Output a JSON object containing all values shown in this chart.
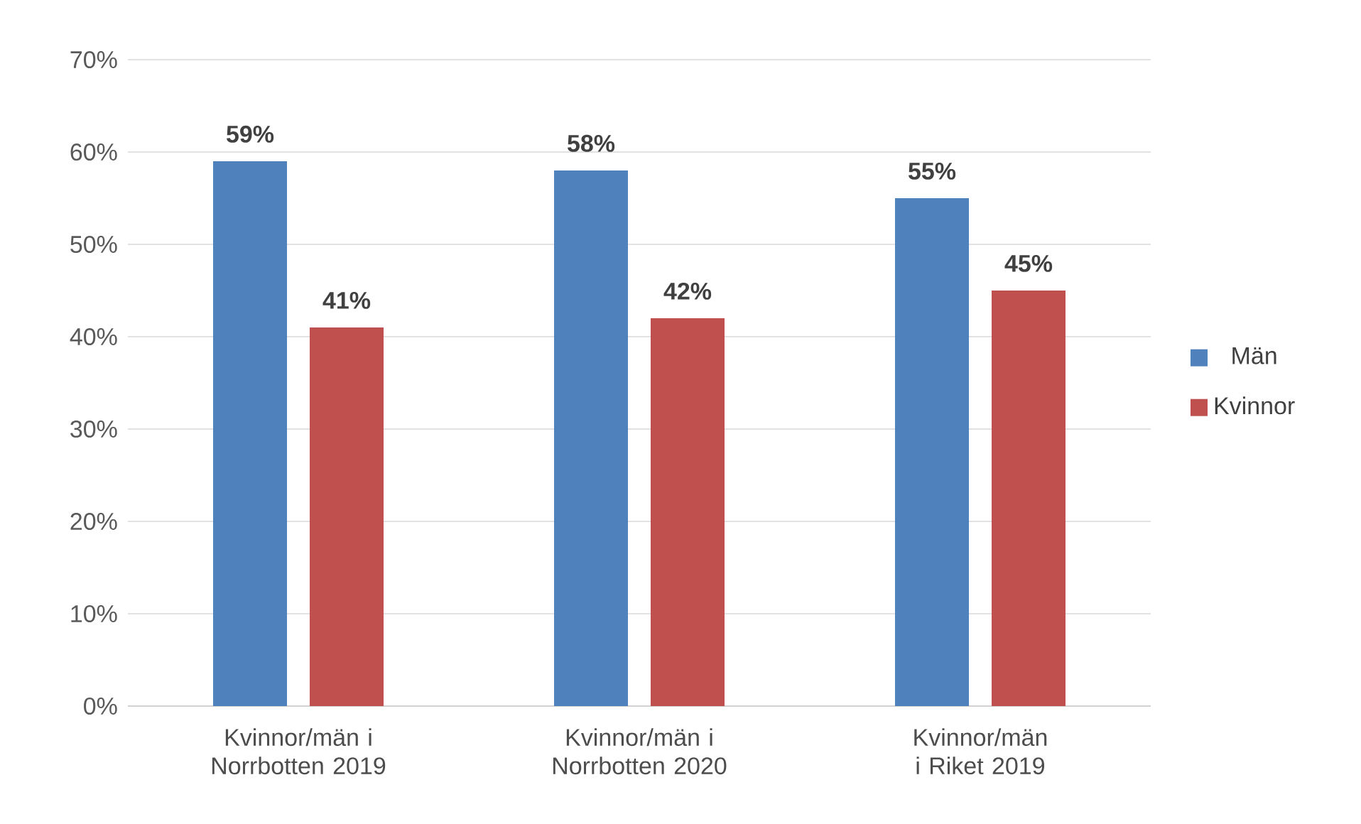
{
  "chart_data": {
    "type": "bar",
    "categories": [
      "Kvinnor/män i Norrbotten 2019",
      "Kvinnor/män i Norrbotten 2020",
      "Kvinnor/män i Riket 2019"
    ],
    "series": [
      {
        "name": "Män",
        "color": "#4f81bd",
        "values": [
          59,
          58,
          55
        ],
        "value_labels": [
          "59%",
          "58%",
          "55%"
        ]
      },
      {
        "name": "Kvinnor",
        "color": "#c0504d",
        "values": [
          41,
          42,
          45
        ],
        "value_labels": [
          "41%",
          "42%",
          "45%"
        ]
      }
    ],
    "ylim": [
      0,
      70
    ],
    "yticks": [
      {
        "value": 0,
        "label": "0%"
      },
      {
        "value": 10,
        "label": "10%"
      },
      {
        "value": 20,
        "label": "20%"
      },
      {
        "value": 30,
        "label": "30%"
      },
      {
        "value": 40,
        "label": "40%"
      },
      {
        "value": 50,
        "label": "50%"
      },
      {
        "value": 60,
        "label": "60%"
      },
      {
        "value": 70,
        "label": "70%"
      }
    ],
    "grid": "y",
    "legend": "right"
  }
}
